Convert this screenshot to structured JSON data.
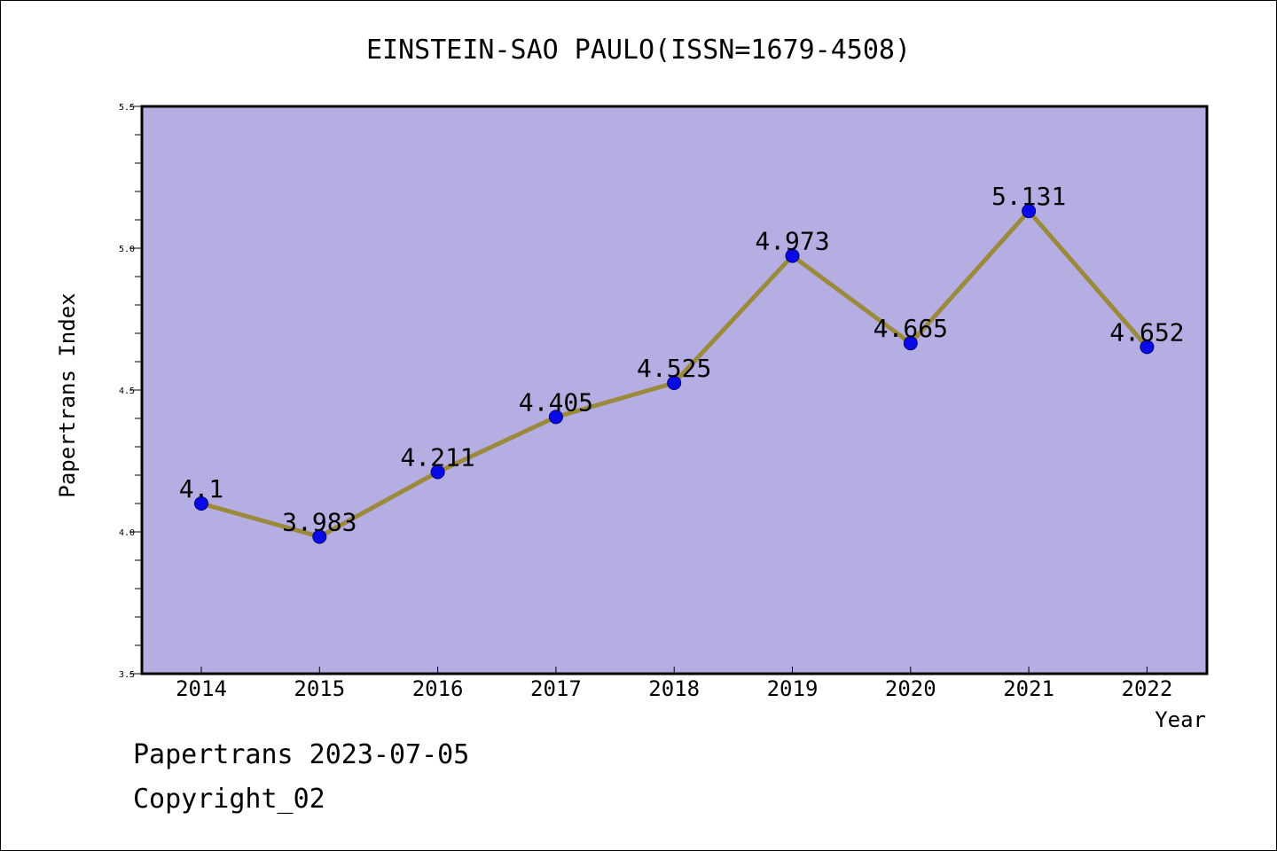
{
  "chart_data": {
    "type": "line",
    "title": "EINSTEIN-SAO PAULO(ISSN=1679-4508)",
    "xlabel": "Year",
    "ylabel": "Papertrans Index",
    "categories": [
      "2014",
      "2015",
      "2016",
      "2017",
      "2018",
      "2019",
      "2020",
      "2021",
      "2022"
    ],
    "series": [
      {
        "values": [
          4.1,
          3.983,
          4.211,
          4.405,
          4.525,
          4.973,
          4.665,
          5.131,
          4.652
        ],
        "data_labels": [
          "4.1",
          "3.983",
          "4.211",
          "4.405",
          "4.525",
          "4.973",
          "4.665",
          "5.131",
          "4.652"
        ]
      }
    ],
    "ylim": [
      3.5,
      5.5
    ],
    "y_ticks": [
      "3.5",
      "4.0",
      "4.5",
      "5.0",
      "5.5"
    ],
    "y_minor_step": 0.1,
    "grid": false,
    "colors": {
      "plot_background": "#b5aee2",
      "line": "#9b8a3c",
      "marker": "#0a0ae8"
    }
  },
  "footer": {
    "line1": "Papertrans 2023-07-05",
    "line2": "Copyright_02"
  }
}
